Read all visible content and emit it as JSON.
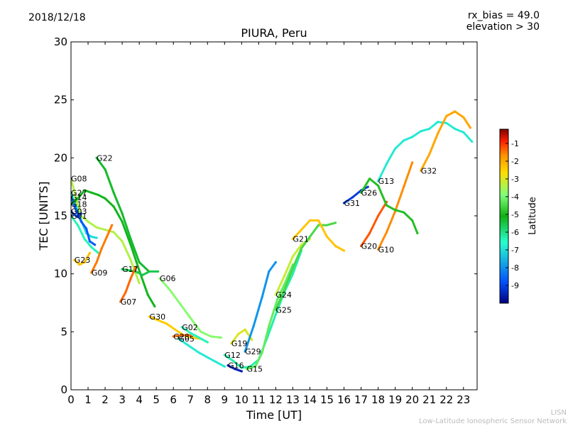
{
  "header": {
    "date": "2018/12/18",
    "note_line1": "rx_bias = 49.0",
    "note_line2": "elevation > 30"
  },
  "footer": {
    "credit_line1": "LISN",
    "credit_line2": "Low-Latitude Ionospheric Sensor Network"
  },
  "chart_data": {
    "type": "scatter",
    "title": "PIURA, Peru",
    "xlabel": "Time [UT]",
    "ylabel": "TEC [UNITS]",
    "xlim": [
      0,
      23.8
    ],
    "ylim": [
      0,
      30
    ],
    "xticks": [
      0,
      1,
      2,
      3,
      4,
      5,
      6,
      7,
      8,
      9,
      10,
      11,
      12,
      13,
      14,
      15,
      16,
      17,
      18,
      19,
      20,
      21,
      22,
      23
    ],
    "yticks": [
      0,
      5,
      10,
      15,
      20,
      25,
      30
    ],
    "grid": false,
    "colorbar": {
      "label": "Latitude",
      "range": [
        -10,
        -0.2
      ],
      "ticks": [
        -9,
        -8,
        -7,
        -6,
        -5,
        -4,
        -3,
        -2,
        -1
      ],
      "colormap": [
        "#00007f",
        "#0050ff",
        "#29ffce",
        "#10b010",
        "#7dff7a",
        "#ffdd00",
        "#ff9000",
        "#ff2000",
        "#7f0000"
      ]
    },
    "series": [
      {
        "name": "G08",
        "lat": -4.6,
        "points": [
          [
            0,
            18.2
          ],
          [
            0.3,
            16.5
          ],
          [
            0.6,
            15.0
          ],
          [
            1.0,
            14.5
          ],
          [
            1.5,
            14.0
          ],
          [
            2.0,
            13.8
          ],
          [
            2.5,
            13.6
          ],
          [
            3.0,
            12.8
          ],
          [
            3.5,
            11.2
          ],
          [
            4.0,
            9.2
          ]
        ]
      },
      {
        "name": "G27",
        "lat": -7.8,
        "points": [
          [
            0,
            17.0
          ],
          [
            0.3,
            15.8
          ],
          [
            0.6,
            14.6
          ],
          [
            0.9,
            13.5
          ],
          [
            1.2,
            13.2
          ],
          [
            1.5,
            13.1
          ]
        ]
      },
      {
        "name": "G14",
        "lat": -8.7,
        "points": [
          [
            0,
            16.6
          ],
          [
            0.3,
            15.5
          ],
          [
            0.6,
            14.5
          ],
          [
            0.9,
            13.9
          ],
          [
            1.1,
            12.8
          ],
          [
            1.4,
            12.5
          ]
        ]
      },
      {
        "name": "G18",
        "lat": -6.4,
        "points": [
          [
            0,
            16.0
          ],
          [
            0.4,
            16.5
          ],
          [
            0.8,
            17.2
          ],
          [
            1.2,
            17.0
          ],
          [
            1.6,
            16.8
          ],
          [
            2.0,
            16.5
          ],
          [
            2.5,
            15.8
          ],
          [
            3.0,
            14.5
          ],
          [
            3.5,
            12.5
          ],
          [
            4.0,
            10.3
          ],
          [
            4.5,
            8.2
          ],
          [
            4.9,
            7.2
          ]
        ]
      },
      {
        "name": "G03",
        "lat": -9.0,
        "points": [
          [
            0,
            15.4
          ],
          [
            0.2,
            15.1
          ],
          [
            0.4,
            14.9
          ],
          [
            0.6,
            15.2
          ]
        ]
      },
      {
        "name": "G01",
        "lat": -7.4,
        "points": [
          [
            0,
            15.0
          ],
          [
            0.4,
            14.2
          ],
          [
            0.8,
            13.0
          ],
          [
            1.2,
            12.3
          ],
          [
            1.6,
            11.8
          ]
        ]
      },
      {
        "name": "G23",
        "lat": -3.4,
        "points": [
          [
            0.2,
            11.2
          ],
          [
            0.5,
            10.8
          ],
          [
            0.8,
            11.0
          ],
          [
            1.1,
            11.8
          ]
        ]
      },
      {
        "name": "G09",
        "lat": -2.4,
        "points": [
          [
            1.2,
            10.1
          ],
          [
            1.5,
            11.0
          ],
          [
            1.8,
            12.2
          ],
          [
            2.1,
            13.2
          ],
          [
            2.4,
            14.2
          ]
        ]
      },
      {
        "name": "G22",
        "lat": -6.5,
        "points": [
          [
            1.5,
            20.0
          ],
          [
            2.0,
            19.0
          ],
          [
            2.5,
            17.0
          ],
          [
            3.0,
            15.2
          ],
          [
            3.5,
            13.0
          ],
          [
            4.0,
            11.0
          ],
          [
            4.5,
            10.3
          ]
        ]
      },
      {
        "name": "G17",
        "lat": -6.7,
        "points": [
          [
            3.0,
            10.4
          ],
          [
            3.4,
            10.3
          ],
          [
            3.8,
            10.2
          ],
          [
            4.2,
            9.9
          ],
          [
            4.6,
            10.2
          ],
          [
            5.1,
            10.2
          ]
        ]
      },
      {
        "name": "G07",
        "lat": -2.2,
        "points": [
          [
            2.9,
            7.6
          ],
          [
            3.2,
            8.4
          ],
          [
            3.5,
            9.6
          ],
          [
            3.8,
            10.6
          ]
        ]
      },
      {
        "name": "G06",
        "lat": -5.0,
        "points": [
          [
            5.2,
            9.6
          ],
          [
            5.8,
            8.6
          ],
          [
            6.4,
            7.4
          ],
          [
            7.0,
            6.2
          ],
          [
            7.6,
            5.0
          ],
          [
            8.2,
            4.6
          ],
          [
            8.8,
            4.5
          ]
        ]
      },
      {
        "name": "G30",
        "lat": -3.6,
        "points": [
          [
            4.6,
            6.3
          ],
          [
            5.1,
            6.0
          ],
          [
            5.6,
            5.7
          ],
          [
            6.1,
            5.2
          ],
          [
            6.6,
            4.7
          ],
          [
            7.1,
            4.5
          ],
          [
            7.6,
            4.4
          ]
        ]
      },
      {
        "name": "G28",
        "lat": -2.3,
        "points": [
          [
            6.0,
            4.6
          ],
          [
            6.5,
            4.7
          ],
          [
            7.0,
            4.7
          ]
        ]
      },
      {
        "name": "G02",
        "lat": -7.4,
        "points": [
          [
            6.5,
            5.4
          ],
          [
            7.0,
            4.9
          ],
          [
            7.5,
            4.5
          ],
          [
            8.0,
            4.1
          ]
        ]
      },
      {
        "name": "G05",
        "lat": -7.7,
        "points": [
          [
            6.3,
            4.4
          ],
          [
            6.9,
            3.8
          ],
          [
            7.5,
            3.2
          ],
          [
            8.0,
            2.8
          ],
          [
            8.5,
            2.4
          ],
          [
            9.0,
            2.0
          ]
        ]
      },
      {
        "name": "G19",
        "lat": -4.2,
        "points": [
          [
            9.4,
            4.0
          ],
          [
            9.8,
            4.8
          ],
          [
            10.2,
            5.2
          ],
          [
            10.6,
            4.3
          ]
        ]
      },
      {
        "name": "G16",
        "lat": -9.5,
        "points": [
          [
            9.2,
            2.1
          ],
          [
            9.6,
            1.8
          ],
          [
            10.0,
            1.6
          ]
        ]
      },
      {
        "name": "G12",
        "lat": -7.3,
        "points": [
          [
            9.0,
            3.0
          ],
          [
            9.5,
            2.5
          ],
          [
            10.0,
            1.9
          ],
          [
            10.5,
            2.0
          ],
          [
            11.0,
            2.6
          ],
          [
            11.5,
            4.5
          ],
          [
            12.0,
            6.5
          ],
          [
            12.5,
            8.4
          ],
          [
            13.0,
            10.0
          ],
          [
            13.5,
            12.0
          ]
        ]
      },
      {
        "name": "G15",
        "lat": -5.4,
        "points": [
          [
            10.3,
            1.8
          ],
          [
            10.8,
            2.0
          ],
          [
            11.2,
            3.2
          ],
          [
            11.6,
            5.5
          ],
          [
            12.1,
            7.8
          ],
          [
            12.6,
            9.4
          ],
          [
            13.0,
            10.8
          ]
        ]
      },
      {
        "name": "G29",
        "lat": -8.3,
        "points": [
          [
            10.2,
            3.3
          ],
          [
            10.7,
            5.5
          ],
          [
            11.2,
            8.0
          ],
          [
            11.6,
            10.2
          ],
          [
            12.0,
            11.0
          ]
        ]
      },
      {
        "name": "G24",
        "lat": -4.4,
        "points": [
          [
            12.0,
            8.2
          ],
          [
            12.5,
            9.8
          ],
          [
            13.0,
            11.5
          ],
          [
            13.5,
            12.5
          ],
          [
            14.0,
            13.0
          ]
        ]
      },
      {
        "name": "G25",
        "lat": -5.7,
        "points": [
          [
            12.0,
            6.9
          ],
          [
            12.5,
            8.6
          ],
          [
            13.0,
            10.5
          ],
          [
            13.5,
            12.2
          ],
          [
            14.0,
            13.2
          ],
          [
            14.5,
            14.2
          ],
          [
            15.0,
            14.2
          ],
          [
            15.5,
            14.4
          ]
        ]
      },
      {
        "name": "G21",
        "lat": -3.5,
        "points": [
          [
            13.0,
            13.0
          ],
          [
            13.5,
            13.8
          ],
          [
            14.0,
            14.6
          ],
          [
            14.5,
            14.6
          ],
          [
            15.0,
            13.2
          ],
          [
            15.5,
            12.4
          ],
          [
            16.0,
            12.0
          ]
        ]
      },
      {
        "name": "G31",
        "lat": -9.1,
        "points": [
          [
            16.0,
            16.1
          ],
          [
            16.5,
            16.6
          ],
          [
            17.0,
            17.2
          ],
          [
            17.4,
            17.5
          ]
        ]
      },
      {
        "name": "G20",
        "lat": -2.0,
        "points": [
          [
            17.0,
            12.4
          ],
          [
            17.5,
            13.5
          ],
          [
            18.0,
            15.0
          ],
          [
            18.5,
            16.2
          ]
        ]
      },
      {
        "name": "G10",
        "lat": -2.6,
        "points": [
          [
            18.0,
            12.1
          ],
          [
            18.5,
            13.6
          ],
          [
            19.0,
            15.4
          ],
          [
            19.5,
            17.5
          ],
          [
            20.0,
            19.6
          ]
        ]
      },
      {
        "name": "G26",
        "lat": -6.1,
        "points": [
          [
            17.0,
            17.0
          ],
          [
            17.5,
            18.2
          ],
          [
            18.0,
            17.6
          ],
          [
            18.5,
            15.9
          ],
          [
            19.0,
            15.5
          ],
          [
            19.5,
            15.3
          ],
          [
            20.0,
            14.6
          ],
          [
            20.3,
            13.5
          ]
        ]
      },
      {
        "name": "G13",
        "lat": -7.7,
        "points": [
          [
            18.0,
            18.0
          ],
          [
            18.5,
            19.5
          ],
          [
            19.0,
            20.8
          ],
          [
            19.5,
            21.5
          ],
          [
            20.0,
            21.8
          ],
          [
            20.5,
            22.3
          ],
          [
            21.0,
            22.5
          ],
          [
            21.5,
            23.1
          ],
          [
            22.0,
            23.0
          ],
          [
            22.5,
            22.5
          ],
          [
            23.0,
            22.2
          ],
          [
            23.5,
            21.4
          ]
        ]
      },
      {
        "name": "G32",
        "lat": -3.0,
        "points": [
          [
            20.5,
            18.9
          ],
          [
            21.0,
            20.3
          ],
          [
            21.5,
            22.1
          ],
          [
            22.0,
            23.6
          ],
          [
            22.5,
            24.0
          ],
          [
            23.0,
            23.5
          ],
          [
            23.4,
            22.6
          ]
        ]
      }
    ]
  }
}
